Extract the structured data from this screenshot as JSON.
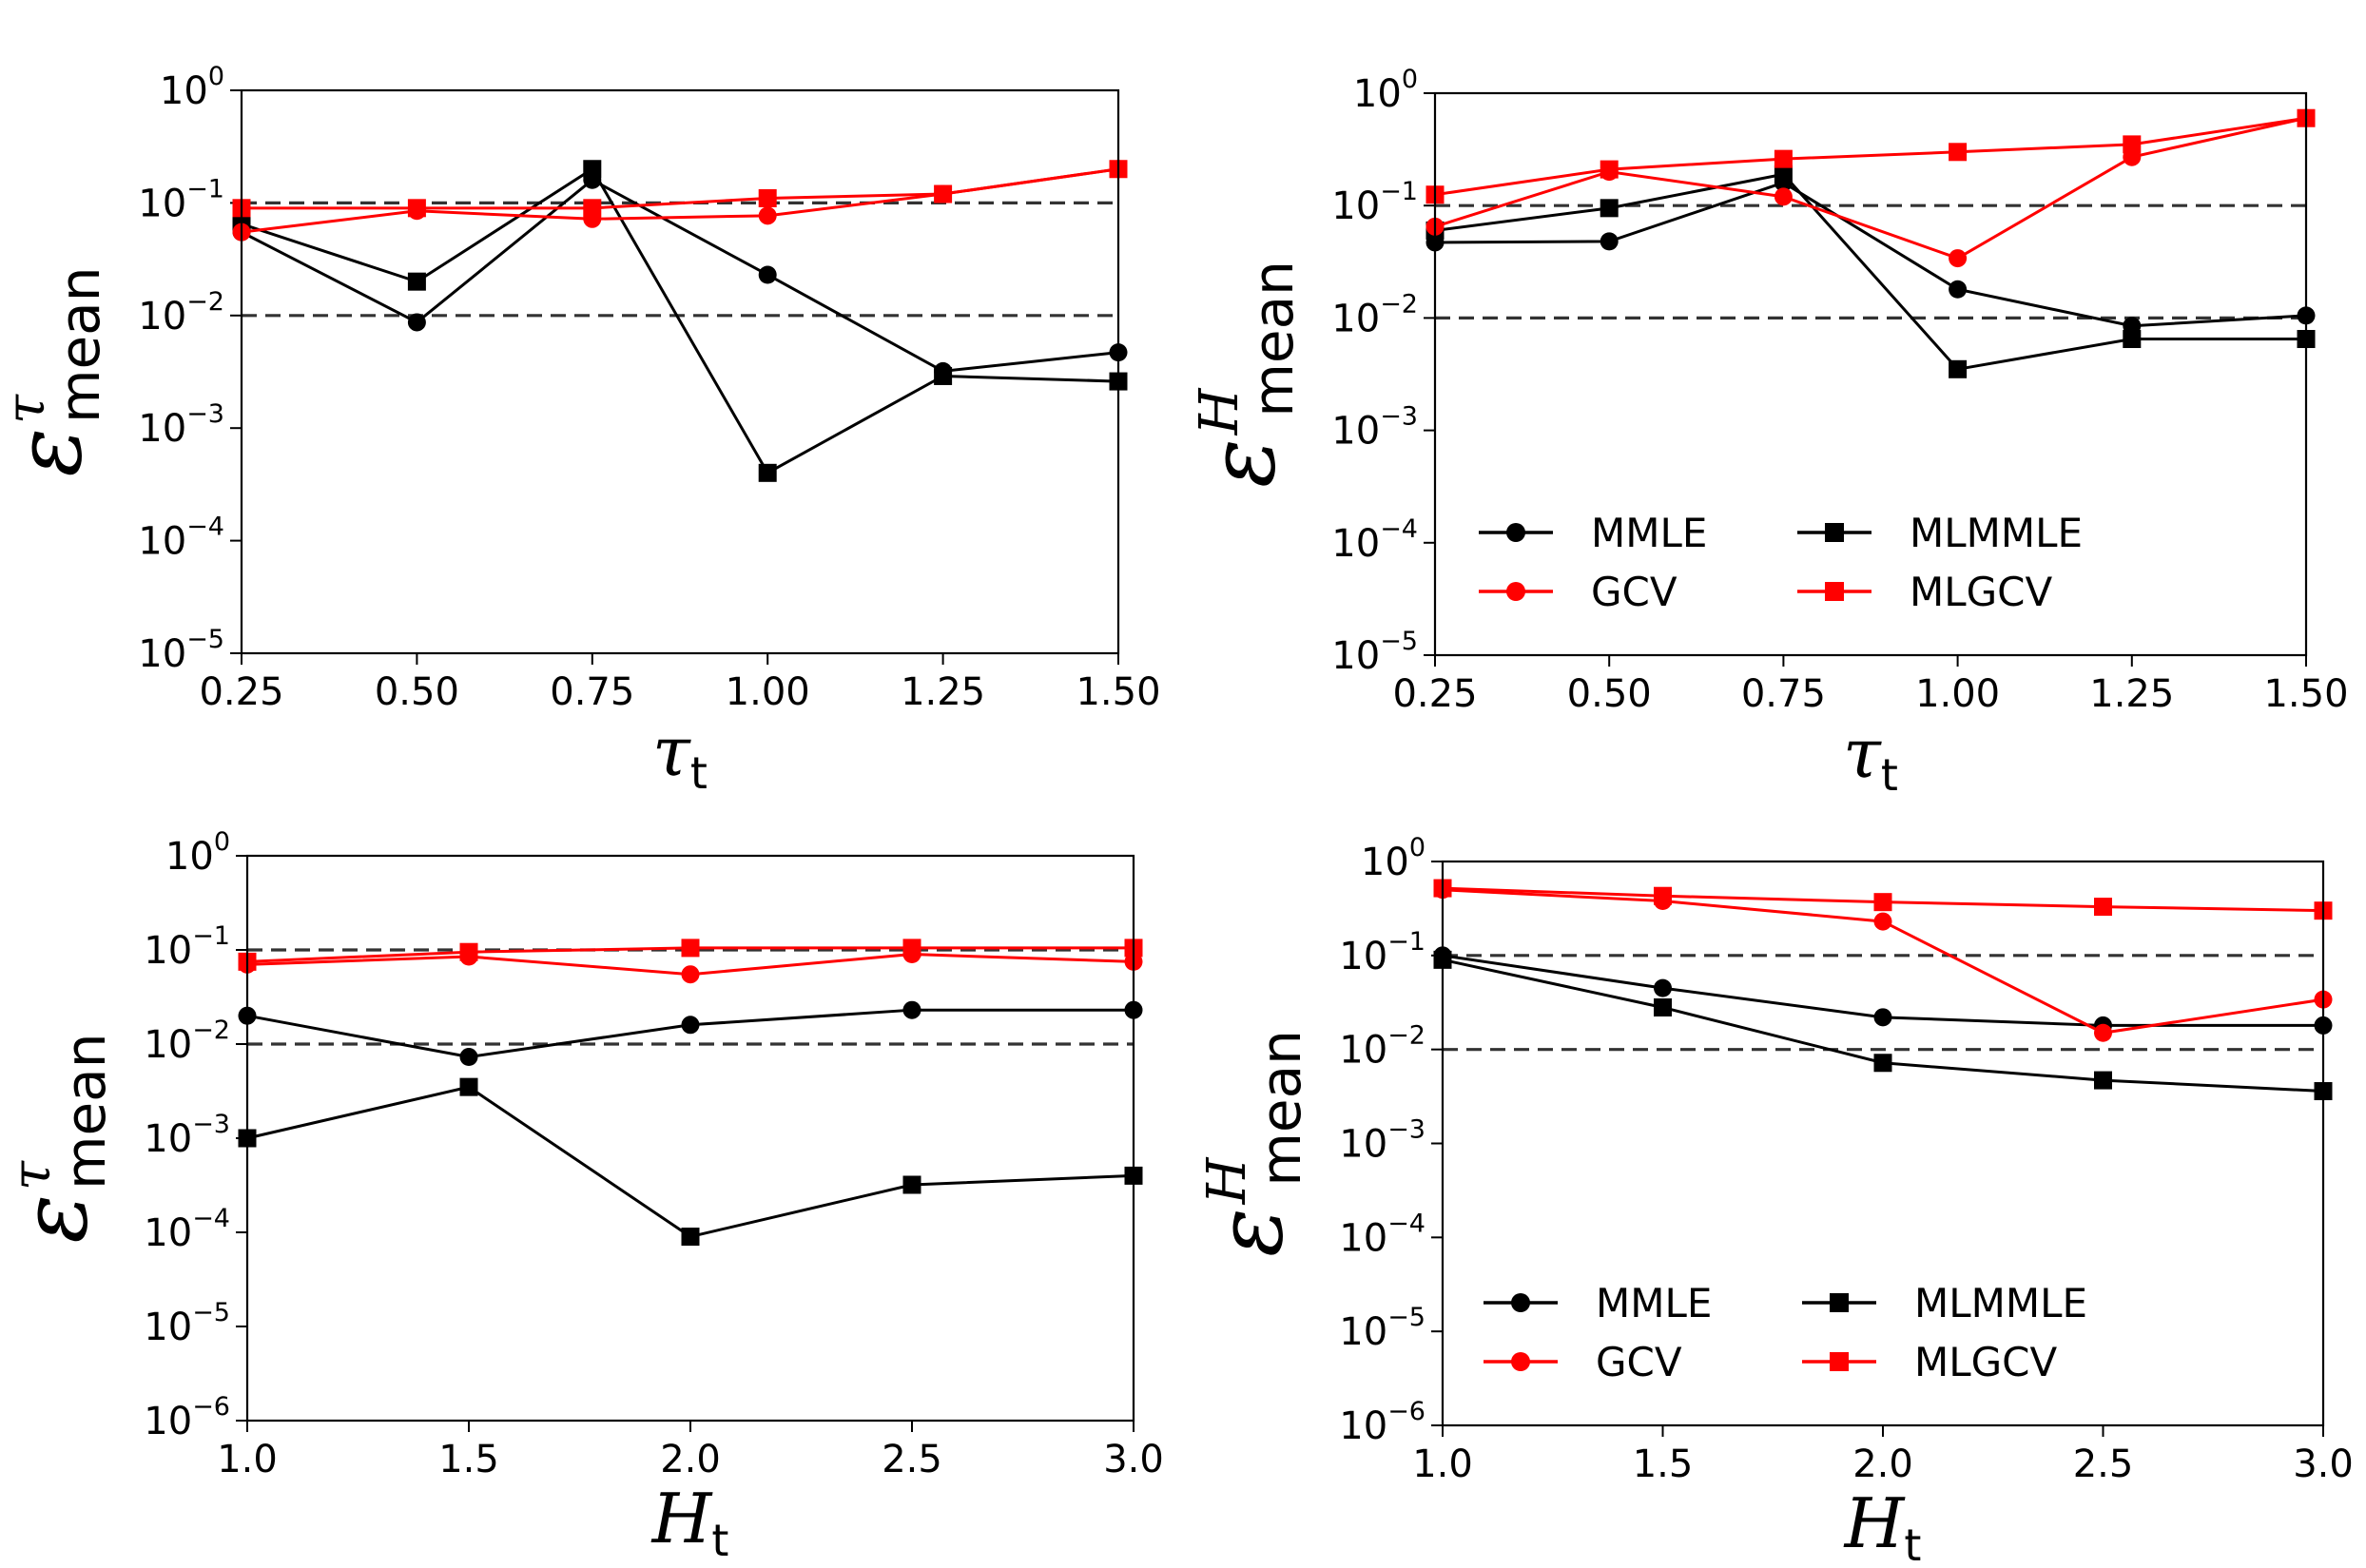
{
  "colors": {
    "black": "#000000",
    "red": "#ff0000",
    "reference": "#333333"
  },
  "chart_data": [
    {
      "type": "line",
      "yscale": "log",
      "x": [
        0.25,
        0.5,
        0.75,
        1.0,
        1.25,
        1.5
      ],
      "xlim": [
        0.25,
        1.5
      ],
      "ylim": [
        1e-05,
        1
      ],
      "xticks": [
        "0.25",
        "0.50",
        "0.75",
        "1.00",
        "1.25",
        "1.50"
      ],
      "yticks": [
        {
          "base": "10",
          "exp": "−5"
        },
        {
          "base": "10",
          "exp": "−4"
        },
        {
          "base": "10",
          "exp": "−3"
        },
        {
          "base": "10",
          "exp": "−2"
        },
        {
          "base": "10",
          "exp": "−1"
        },
        {
          "base": "10",
          "exp": "0"
        }
      ],
      "xlabel": {
        "main": "τ",
        "sub": "t"
      },
      "ylabel": {
        "main": "ε",
        "sup": "τ",
        "sub": "mean"
      },
      "reference_lines": [
        0.1,
        0.01
      ],
      "series": [
        {
          "name": "MMLE",
          "color": "black",
          "marker": "circle",
          "values": [
            0.055,
            0.0087,
            0.16,
            0.023,
            0.0032,
            0.0047
          ]
        },
        {
          "name": "MLMMLE",
          "color": "black",
          "marker": "square",
          "values": [
            0.065,
            0.02,
            0.2,
            0.0004,
            0.0029,
            0.0026
          ]
        },
        {
          "name": "GCV",
          "color": "red",
          "marker": "circle",
          "values": [
            0.055,
            0.085,
            0.072,
            0.077,
            0.12,
            0.2
          ]
        },
        {
          "name": "MLGCV",
          "color": "red",
          "marker": "square",
          "values": [
            0.09,
            0.09,
            0.09,
            0.11,
            0.12,
            0.2
          ]
        }
      ]
    },
    {
      "type": "line",
      "yscale": "log",
      "x": [
        0.25,
        0.5,
        0.75,
        1.0,
        1.25,
        1.5
      ],
      "xlim": [
        0.25,
        1.5
      ],
      "ylim": [
        1e-05,
        1
      ],
      "xticks": [
        "0.25",
        "0.50",
        "0.75",
        "1.00",
        "1.25",
        "1.50"
      ],
      "yticks": [
        {
          "base": "10",
          "exp": "−5"
        },
        {
          "base": "10",
          "exp": "−4"
        },
        {
          "base": "10",
          "exp": "−3"
        },
        {
          "base": "10",
          "exp": "−2"
        },
        {
          "base": "10",
          "exp": "−1"
        },
        {
          "base": "10",
          "exp": "0"
        }
      ],
      "xlabel": {
        "main": "τ",
        "sub": "t"
      },
      "ylabel": {
        "main": "ε",
        "sup": "H",
        "sub": "mean"
      },
      "reference_lines": [
        0.1,
        0.01
      ],
      "legend": "lower-left",
      "series": [
        {
          "name": "MMLE",
          "color": "black",
          "marker": "circle",
          "values": [
            0.047,
            0.048,
            0.16,
            0.018,
            0.0085,
            0.0105
          ]
        },
        {
          "name": "MLMMLE",
          "color": "black",
          "marker": "square",
          "values": [
            0.06,
            0.095,
            0.19,
            0.0035,
            0.0065,
            0.0065
          ]
        },
        {
          "name": "GCV",
          "color": "red",
          "marker": "circle",
          "values": [
            0.065,
            0.2,
            0.12,
            0.034,
            0.27,
            0.6
          ]
        },
        {
          "name": "MLGCV",
          "color": "red",
          "marker": "square",
          "values": [
            0.125,
            0.21,
            0.26,
            0.3,
            0.35,
            0.6
          ]
        }
      ]
    },
    {
      "type": "line",
      "yscale": "log",
      "x": [
        1.0,
        1.5,
        2.0,
        2.5,
        3.0
      ],
      "xlim": [
        1.0,
        3.0
      ],
      "ylim": [
        1e-06,
        1
      ],
      "xticks": [
        "1.0",
        "1.5",
        "2.0",
        "2.5",
        "3.0"
      ],
      "yticks": [
        {
          "base": "10",
          "exp": "−6"
        },
        {
          "base": "10",
          "exp": "−5"
        },
        {
          "base": "10",
          "exp": "−4"
        },
        {
          "base": "10",
          "exp": "−3"
        },
        {
          "base": "10",
          "exp": "−2"
        },
        {
          "base": "10",
          "exp": "−1"
        },
        {
          "base": "10",
          "exp": "0"
        }
      ],
      "xlabel": {
        "main": "H",
        "sub": "t"
      },
      "ylabel": {
        "main": "ε",
        "sup": "τ",
        "sub": "mean"
      },
      "reference_lines": [
        0.1,
        0.01
      ],
      "series": [
        {
          "name": "MMLE",
          "color": "black",
          "marker": "circle",
          "values": [
            0.02,
            0.0073,
            0.016,
            0.023,
            0.023
          ]
        },
        {
          "name": "MLMMLE",
          "color": "black",
          "marker": "square",
          "values": [
            0.001,
            0.0035,
            9e-05,
            0.00032,
            0.0004
          ]
        },
        {
          "name": "GCV",
          "color": "red",
          "marker": "circle",
          "values": [
            0.07,
            0.085,
            0.055,
            0.09,
            0.075
          ]
        },
        {
          "name": "MLGCV",
          "color": "red",
          "marker": "square",
          "values": [
            0.075,
            0.095,
            0.105,
            0.105,
            0.105
          ]
        }
      ]
    },
    {
      "type": "line",
      "yscale": "log",
      "x": [
        1.0,
        1.5,
        2.0,
        2.5,
        3.0
      ],
      "xlim": [
        1.0,
        3.0
      ],
      "ylim": [
        1e-06,
        1
      ],
      "xticks": [
        "1.0",
        "1.5",
        "2.0",
        "2.5",
        "3.0"
      ],
      "yticks": [
        {
          "base": "10",
          "exp": "−6"
        },
        {
          "base": "10",
          "exp": "−5"
        },
        {
          "base": "10",
          "exp": "−4"
        },
        {
          "base": "10",
          "exp": "−3"
        },
        {
          "base": "10",
          "exp": "−2"
        },
        {
          "base": "10",
          "exp": "−1"
        },
        {
          "base": "10",
          "exp": "0"
        }
      ],
      "xlabel": {
        "main": "H",
        "sub": "t"
      },
      "ylabel": {
        "main": "ε",
        "sup": "H",
        "sub": "mean"
      },
      "reference_lines": [
        0.1,
        0.01
      ],
      "legend": "lower-left",
      "series": [
        {
          "name": "MMLE",
          "color": "black",
          "marker": "circle",
          "values": [
            0.1,
            0.045,
            0.022,
            0.018,
            0.018
          ]
        },
        {
          "name": "MLMMLE",
          "color": "black",
          "marker": "square",
          "values": [
            0.09,
            0.028,
            0.0072,
            0.0047,
            0.0036
          ]
        },
        {
          "name": "GCV",
          "color": "red",
          "marker": "circle",
          "values": [
            0.5,
            0.38,
            0.23,
            0.015,
            0.034
          ]
        },
        {
          "name": "MLGCV",
          "color": "red",
          "marker": "square",
          "values": [
            0.52,
            0.43,
            0.37,
            0.33,
            0.3
          ]
        }
      ]
    }
  ]
}
